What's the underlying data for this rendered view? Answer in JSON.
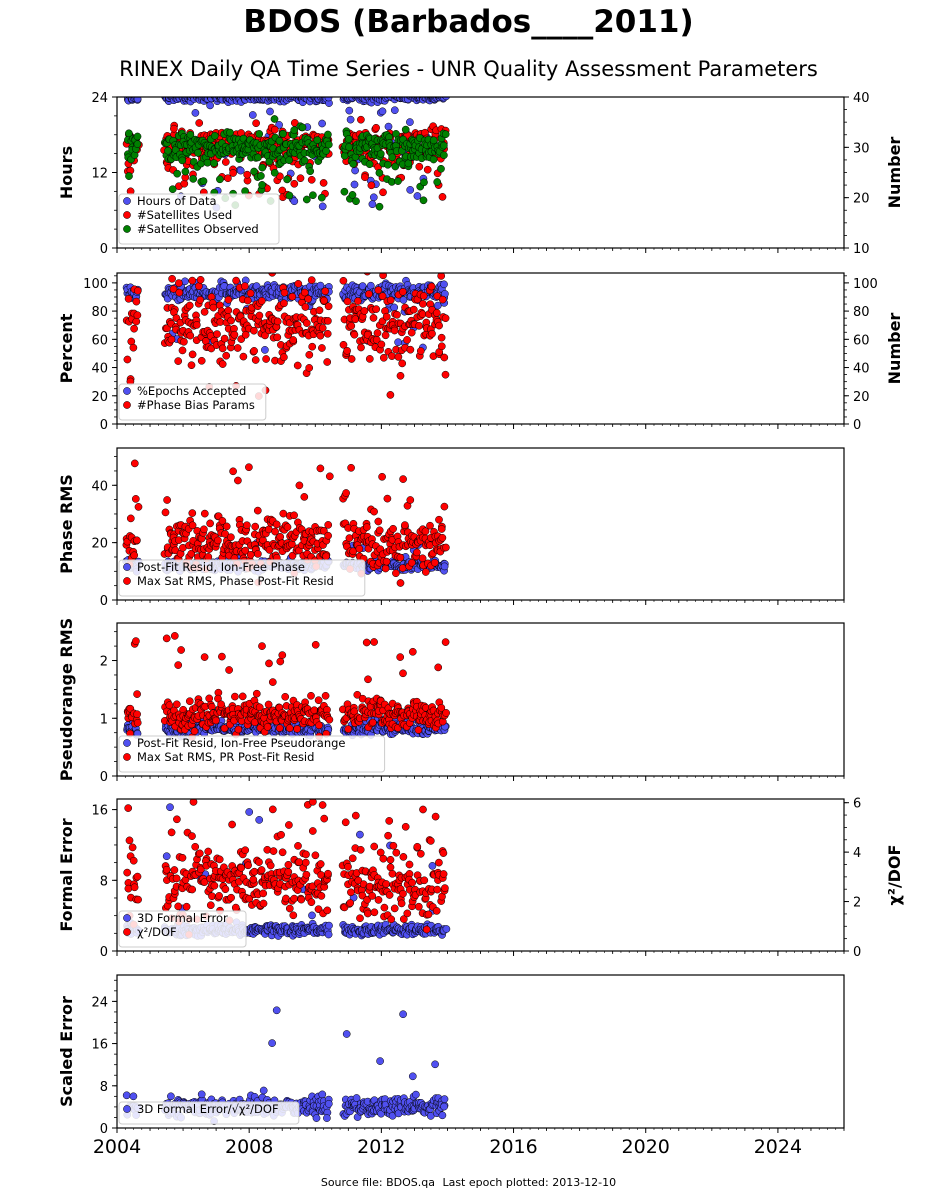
{
  "header": {
    "title": "BDOS (Barbados____2011)",
    "subtitle": "RINEX Daily QA Time Series - UNR Quality Assessment Parameters"
  },
  "footer": {
    "source_label": "Source file: BDOS.qa",
    "last_epoch_label": "Last epoch plotted: 2013-12-10"
  },
  "colors": {
    "blue": "#5050f0",
    "red": "#ff0000",
    "green": "#008000",
    "marker_edge": "#000000"
  },
  "chart_data": [
    {
      "type": "scatter",
      "id": "hours",
      "ylabel": "Hours",
      "y2label": "Number",
      "ylim": [
        0,
        24
      ],
      "yticks": [
        0,
        12,
        24
      ],
      "y2lim": [
        10,
        40
      ],
      "y2ticks": [
        10,
        20,
        30,
        40
      ],
      "xlim": [
        2004,
        2026
      ],
      "legend_position": "lower-left",
      "data_range": [
        2004.3,
        2013.95
      ],
      "gaps": [
        [
          2004.65,
          2005.45
        ],
        [
          2010.42,
          2010.85
        ]
      ],
      "series": [
        {
          "name": "Hours of Data",
          "color": "blue",
          "axis": "left",
          "typical": 23.9,
          "spread": 0.3,
          "outlier_rate": 0.12,
          "outlier_range": [
            6,
            23
          ]
        },
        {
          "name": "#Satellites Used",
          "color": "red",
          "axis": "right",
          "typical": 30.5,
          "spread": 1.8,
          "outlier_rate": 0.15,
          "outlier_range": [
            20,
            29
          ]
        },
        {
          "name": "#Satellites Observed",
          "color": "green",
          "axis": "right",
          "typical": 30.0,
          "spread": 1.6,
          "outlier_rate": 0.15,
          "outlier_range": [
            18,
            29
          ]
        }
      ]
    },
    {
      "type": "scatter",
      "id": "percent",
      "ylabel": "Percent",
      "y2label": "Number",
      "ylim": [
        0,
        107
      ],
      "yticks": [
        0,
        20,
        40,
        60,
        80,
        100
      ],
      "y2lim": [
        0,
        107
      ],
      "y2ticks": [
        0,
        20,
        40,
        60,
        80,
        100
      ],
      "xlim": [
        2004,
        2026
      ],
      "legend_position": "lower-left",
      "data_range": [
        2004.3,
        2013.95
      ],
      "gaps": [
        [
          2004.65,
          2005.45
        ],
        [
          2010.42,
          2010.85
        ]
      ],
      "series": [
        {
          "name": "%Epochs Accepted",
          "color": "blue",
          "axis": "left",
          "typical": 93,
          "spread": 3,
          "outlier_rate": 0.03,
          "outlier_range": [
            50,
            85
          ]
        },
        {
          "name": "#Phase Bias Params",
          "color": "red",
          "axis": "right",
          "typical": 72,
          "spread": 14,
          "outlier_rate": 0.12,
          "outlier_range": [
            18,
            105
          ]
        }
      ]
    },
    {
      "type": "scatter",
      "id": "phase-rms",
      "ylabel": "Phase RMS",
      "ylim": [
        0,
        53
      ],
      "yticks": [
        0,
        20,
        40
      ],
      "xlim": [
        2004,
        2026
      ],
      "legend_position": "lower-left",
      "data_range": [
        2004.3,
        2013.95
      ],
      "gaps": [
        [
          2004.65,
          2005.45
        ],
        [
          2010.42,
          2010.85
        ]
      ],
      "series": [
        {
          "name": "Post-Fit Resid, Ion-Free Phase",
          "color": "blue",
          "axis": "left",
          "typical": 12,
          "spread": 0.8,
          "outlier_rate": 0.02,
          "outlier_range": [
            14,
            20
          ]
        },
        {
          "name": "Max Sat RMS, Phase Post-Fit Resid",
          "color": "red",
          "axis": "left",
          "typical": 20,
          "spread": 4.5,
          "outlier_rate": 0.05,
          "outlier_range": [
            28,
            50
          ]
        }
      ]
    },
    {
      "type": "scatter",
      "id": "pseudorange-rms",
      "ylabel": "Pseudorange RMS",
      "ylim": [
        0,
        2.65
      ],
      "yticks": [
        0,
        1,
        2
      ],
      "xlim": [
        2004,
        2026
      ],
      "legend_position": "lower-left",
      "data_range": [
        2004.3,
        2013.95
      ],
      "gaps": [
        [
          2004.65,
          2005.45
        ],
        [
          2010.42,
          2010.85
        ]
      ],
      "series": [
        {
          "name": "Post-Fit Resid, Ion-Free Pseudorange",
          "color": "blue",
          "axis": "left",
          "typical": 0.82,
          "spread": 0.05,
          "outlier_rate": 0.02,
          "outlier_range": [
            0.9,
            1.0
          ]
        },
        {
          "name": "Max Sat RMS, PR Post-Fit Resid",
          "color": "red",
          "axis": "left",
          "typical": 1.05,
          "spread": 0.13,
          "outlier_rate": 0.06,
          "outlier_range": [
            1.4,
            2.5
          ]
        }
      ]
    },
    {
      "type": "scatter",
      "id": "formal-error",
      "ylabel": "Formal Error",
      "y2label": "χ²/DOF",
      "ylim": [
        0,
        17.2
      ],
      "yticks": [
        0,
        8,
        16
      ],
      "y2lim": [
        0,
        6.15
      ],
      "y2ticks": [
        0,
        2,
        4,
        6
      ],
      "xlim": [
        2004,
        2026
      ],
      "legend_position": "lower-left",
      "data_range": [
        2004.3,
        2013.95
      ],
      "gaps": [
        [
          2004.65,
          2005.45
        ],
        [
          2010.42,
          2010.85
        ]
      ],
      "series": [
        {
          "name": "3D Formal Error",
          "color": "blue",
          "axis": "left",
          "typical": 2.4,
          "spread": 0.3,
          "outlier_rate": 0.04,
          "outlier_range": [
            3,
            16.5
          ]
        },
        {
          "name": "χ²/DOF",
          "color": "red",
          "axis": "right",
          "typical": 2.7,
          "spread": 0.7,
          "outlier_rate": 0.06,
          "outlier_range": [
            4,
            6.1
          ]
        }
      ]
    },
    {
      "type": "scatter",
      "id": "scaled-error",
      "ylabel": "Scaled Error",
      "ylim": [
        0,
        29
      ],
      "yticks": [
        0,
        8,
        16,
        24
      ],
      "xlim": [
        2004,
        2026
      ],
      "legend_position": "lower-left",
      "data_range": [
        2004.3,
        2013.95
      ],
      "gaps": [
        [
          2004.65,
          2005.45
        ],
        [
          2010.42,
          2010.85
        ]
      ],
      "series": [
        {
          "name": "3D Formal Error/√χ²/DOF",
          "color": "blue",
          "axis": "left",
          "typical": 4.0,
          "spread": 0.8,
          "outlier_rate": 0.03,
          "outlier_range": [
            6,
            28
          ]
        }
      ]
    }
  ],
  "xaxis": {
    "ticks": [
      2004,
      2008,
      2012,
      2016,
      2020,
      2024
    ]
  }
}
